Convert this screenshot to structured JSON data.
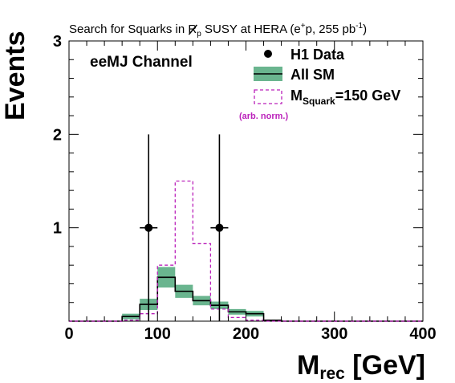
{
  "chart_data": {
    "type": "bar",
    "title": {
      "prefix": "Search for Squarks in ",
      "r_symbol": "R",
      "r_subscript": "p",
      "middle": " SUSY at HERA (e",
      "charge_sup": "+",
      "after_charge": "p, 255 pb",
      "lumi_sup": "-1",
      "suffix": ")"
    },
    "channel_label": "eeMJ Channel",
    "xlabel": {
      "main": "M",
      "sub": "rec",
      "unit": " [GeV]"
    },
    "ylabel": "Events",
    "xlim": [
      0,
      400
    ],
    "ylim": [
      0,
      3
    ],
    "x_ticks": [
      0,
      100,
      200,
      300,
      400
    ],
    "x_tick_labels": [
      "0",
      "100",
      "200",
      "300",
      "400"
    ],
    "y_ticks": [
      1,
      2,
      3
    ],
    "y_tick_labels": [
      "1",
      "2",
      "3"
    ],
    "bin_edges": [
      0,
      20,
      40,
      60,
      80,
      100,
      120,
      140,
      160,
      180,
      200,
      220,
      240,
      260,
      280,
      300,
      320,
      340,
      360,
      380,
      400
    ],
    "legend": {
      "placement": "top-right",
      "data_label": "H1 Data",
      "sm_label": "All SM",
      "signal_label": {
        "main": "M",
        "sub": "Squark",
        "rest": "=150 GeV"
      },
      "signal_note": "(arb. norm.)"
    },
    "series": [
      {
        "name": "All SM",
        "values": [
          0,
          0,
          0,
          0.05,
          0.18,
          0.47,
          0.32,
          0.22,
          0.17,
          0.1,
          0.08,
          0.01,
          0,
          0,
          0,
          0,
          0,
          0,
          0,
          0
        ],
        "errors": [
          0,
          0,
          0,
          0.03,
          0.06,
          0.11,
          0.07,
          0.05,
          0.04,
          0.03,
          0.03,
          0.005,
          0,
          0,
          0,
          0,
          0,
          0,
          0,
          0
        ]
      },
      {
        "name": "M_Squark=150 GeV",
        "values": [
          0,
          0,
          0,
          0.01,
          0.08,
          0.6,
          1.5,
          0.83,
          0.13,
          0.04,
          0.01,
          0,
          0,
          0,
          0,
          0,
          0,
          0,
          0,
          0
        ]
      },
      {
        "name": "H1 Data",
        "points": [
          {
            "x": 90,
            "y": 1,
            "xerr": 10,
            "yerr_low": 1,
            "yerr_high": 1
          },
          {
            "x": 170,
            "y": 1,
            "xerr": 10,
            "yerr_low": 1,
            "yerr_high": 1
          }
        ]
      }
    ],
    "colors": {
      "sm_band": "#6ab58f",
      "sm_line": "#000000",
      "signal": "#bb22bb",
      "data": "#000000"
    }
  }
}
